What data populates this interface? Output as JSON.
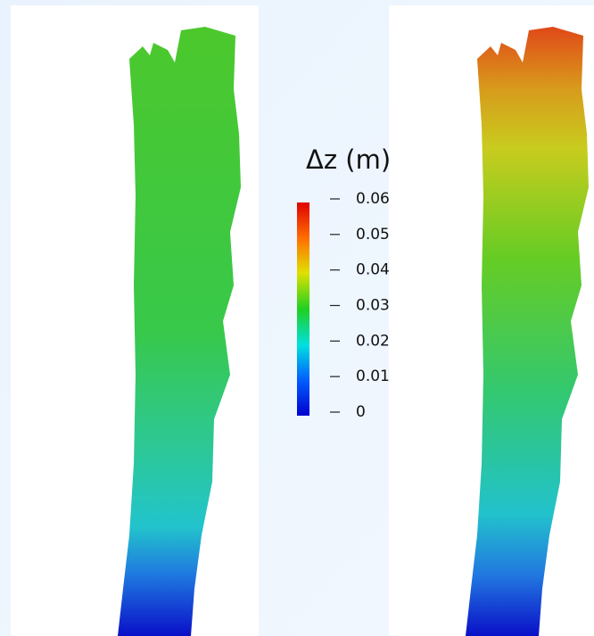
{
  "colorbar": {
    "title": "Δz (m)",
    "range": [
      0,
      0.06
    ],
    "ticks": [
      0.06,
      0.05,
      0.04,
      0.03,
      0.02,
      0.01,
      0
    ]
  }
}
